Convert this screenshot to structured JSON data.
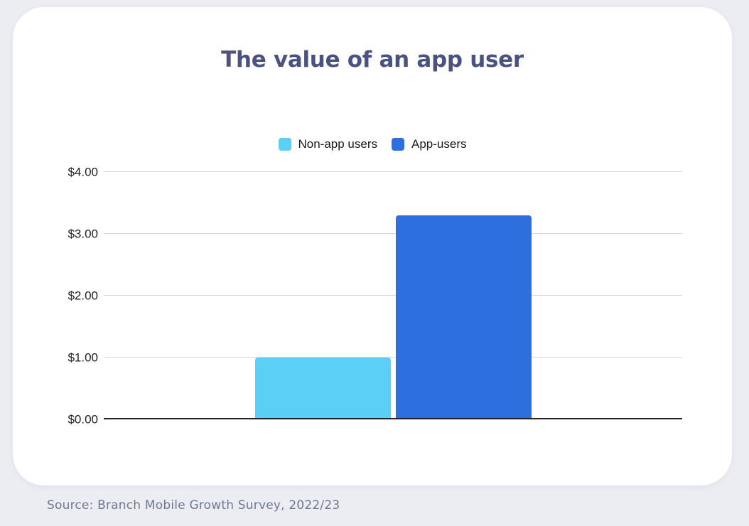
{
  "theme": {
    "background": "#ECECF3",
    "card_background": "#FFFFFF",
    "title_color": "#4A5280",
    "axis_text_color": "#1F1F1F",
    "legend_text_color": "#1A1A1A",
    "gridline_color": "#D8D8D8",
    "baseline_color": "#212121",
    "source_color": "#6E7A8F"
  },
  "source": "Source: Branch Mobile Growth Survey, 2022/23",
  "chart_data": {
    "type": "bar",
    "title": "The value of an app user",
    "categories": [
      "Non-app users",
      "App-users"
    ],
    "values": [
      1.0,
      3.3
    ],
    "colors": [
      "#5BCFF5",
      "#2E6FDF"
    ],
    "xlabel": "",
    "ylabel": "",
    "ylim": [
      0,
      4
    ],
    "yticks": [
      {
        "value": 0,
        "label": "$0.00"
      },
      {
        "value": 1,
        "label": "$1.00"
      },
      {
        "value": 2,
        "label": "$2.00"
      },
      {
        "value": 3,
        "label": "$3.00"
      },
      {
        "value": 4,
        "label": "$4.00"
      }
    ],
    "grid": true,
    "legend_position": "top"
  }
}
